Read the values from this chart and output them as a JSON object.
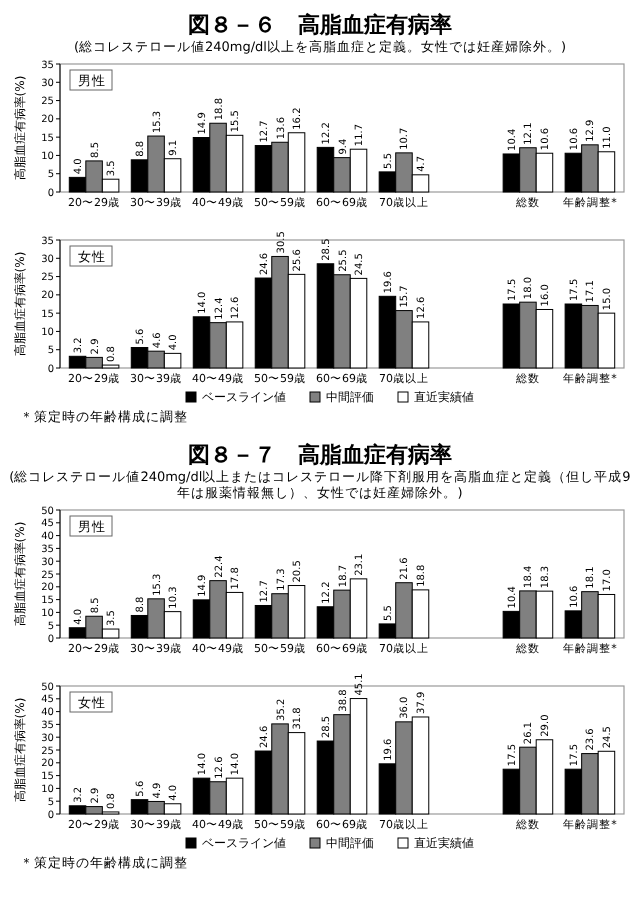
{
  "chart_data": [
    {
      "type": "bar",
      "title": "図８－６　高脂血症有病率",
      "subtitle": "(総コレステロール値240mg/dl以上を高脂血症と定義。女性では妊産婦除外。)",
      "ylabel": "高脂血症有病率(%)",
      "annotations": [
        "男性"
      ],
      "categories": [
        "20〜29歳",
        "30〜39歳",
        "40〜49歳",
        "50〜59歳",
        "60〜69歳",
        "70歳以上",
        null,
        "総数",
        "年齢調整*"
      ],
      "ylim": [
        0,
        35
      ],
      "yticks": [
        0,
        5,
        10,
        15,
        20,
        25,
        30,
        35
      ],
      "series": [
        {
          "color": "#000000",
          "values": [
            4.0,
            8.8,
            14.9,
            12.7,
            12.2,
            5.5,
            null,
            10.4,
            10.6
          ],
          "value_labels": [
            "4.0",
            "8.8",
            "14.9",
            "12.7",
            "12.2",
            "5.5",
            null,
            "10.4",
            "10.6"
          ]
        },
        {
          "color": "#808080",
          "values": [
            8.5,
            15.3,
            18.8,
            13.6,
            9.4,
            10.7,
            null,
            12.1,
            12.9
          ],
          "value_labels": [
            "8.5",
            "15.3",
            "18.8",
            "13.6",
            "9.4",
            "10.7",
            null,
            "12.1",
            "12.9"
          ]
        },
        {
          "color": "#ffffff",
          "values": [
            3.5,
            9.1,
            15.5,
            16.2,
            11.7,
            4.7,
            null,
            10.6,
            11.0
          ],
          "value_labels": [
            "3.5",
            "9.1",
            "15.5",
            "16.2",
            "11.7",
            "4.7",
            null,
            "10.6",
            "11.0"
          ]
        }
      ]
    },
    {
      "type": "bar",
      "ylabel": "高脂血症有病率(%)",
      "annotations": [
        "女性",
        "＊策定時の年齢構成に調整"
      ],
      "categories": [
        "20〜29歳",
        "30〜39歳",
        "40〜49歳",
        "50〜59歳",
        "60〜69歳",
        "70歳以上",
        null,
        "総数",
        "年齢調整*"
      ],
      "ylim": [
        0,
        35
      ],
      "yticks": [
        0,
        5,
        10,
        15,
        20,
        25,
        30,
        35
      ],
      "legend": "bottom",
      "series": [
        {
          "name": "ベースライン値",
          "color": "#000000",
          "values": [
            3.2,
            5.6,
            14.0,
            24.6,
            28.5,
            19.6,
            null,
            17.5,
            17.5
          ],
          "value_labels": [
            "3.2",
            "5.6",
            "14.0",
            "24.6",
            "28.5",
            "19.6",
            null,
            "17.5",
            "17.5"
          ]
        },
        {
          "name": "中間評価",
          "color": "#808080",
          "values": [
            2.9,
            4.6,
            12.4,
            30.5,
            25.5,
            15.7,
            null,
            18.0,
            17.1
          ],
          "value_labels": [
            "2.9",
            "4.6",
            "12.4",
            "30.5",
            "25.5",
            "15.7",
            null,
            "18.0",
            "17.1"
          ]
        },
        {
          "name": "直近実績値",
          "color": "#ffffff",
          "values": [
            0.8,
            4.0,
            12.6,
            25.6,
            24.5,
            12.6,
            null,
            16.0,
            15.0
          ],
          "value_labels": [
            "0.8",
            "4.0",
            "12.6",
            "25.6",
            "24.5",
            "12.6",
            null,
            "16.0",
            "15.0"
          ]
        }
      ]
    },
    {
      "type": "bar",
      "title": "図８－７　高脂血症有病率",
      "subtitle": "(総コレステロール値240mg/dl以上またはコレステロール降下剤服用を高脂血症と定義（但し平成9年は服薬情報無し）、女性では妊産婦除外。)",
      "ylabel": "高脂血症有病率(%)",
      "annotations": [
        "男性"
      ],
      "categories": [
        "20〜29歳",
        "30〜39歳",
        "40〜49歳",
        "50〜59歳",
        "60〜69歳",
        "70歳以上",
        null,
        "総数",
        "年齢調整*"
      ],
      "ylim": [
        0,
        50
      ],
      "yticks": [
        0,
        5,
        10,
        15,
        20,
        25,
        30,
        35,
        40,
        45,
        50
      ],
      "series": [
        {
          "color": "#000000",
          "values": [
            4.0,
            8.8,
            14.9,
            12.7,
            12.2,
            5.5,
            null,
            10.4,
            10.6
          ],
          "value_labels": [
            "4.0",
            "8.8",
            "14.9",
            "12.7",
            "12.2",
            "5.5",
            null,
            "10.4",
            "10.6"
          ]
        },
        {
          "color": "#808080",
          "values": [
            8.5,
            15.3,
            22.4,
            17.3,
            18.7,
            21.6,
            null,
            18.4,
            18.1
          ],
          "value_labels": [
            "8.5",
            "15.3",
            "22.4",
            "17.3",
            "18.7",
            "21.6",
            null,
            "18.4",
            "18.1"
          ]
        },
        {
          "color": "#ffffff",
          "values": [
            3.5,
            10.3,
            17.8,
            20.5,
            23.1,
            18.8,
            null,
            18.3,
            17.0
          ],
          "value_labels": [
            "3.5",
            "10.3",
            "17.8",
            "20.5",
            "23.1",
            "18.8",
            null,
            "18.3",
            "17.0"
          ]
        }
      ]
    },
    {
      "type": "bar",
      "ylabel": "高脂血症有病率(%)",
      "annotations": [
        "女性",
        "＊策定時の年齢構成に調整"
      ],
      "categories": [
        "20〜29歳",
        "30〜39歳",
        "40〜49歳",
        "50〜59歳",
        "60〜69歳",
        "70歳以上",
        null,
        "総数",
        "年齢調整*"
      ],
      "ylim": [
        0,
        50
      ],
      "yticks": [
        0,
        5,
        10,
        15,
        20,
        25,
        30,
        35,
        40,
        45,
        50
      ],
      "legend": "bottom",
      "series": [
        {
          "name": "ベースライン値",
          "color": "#000000",
          "values": [
            3.2,
            5.6,
            14.0,
            24.6,
            28.5,
            19.6,
            null,
            17.5,
            17.5
          ],
          "value_labels": [
            "3.2",
            "5.6",
            "14.0",
            "24.6",
            "28.5",
            "19.6",
            null,
            "17.5",
            "17.5"
          ]
        },
        {
          "name": "中間評価",
          "color": "#808080",
          "values": [
            2.9,
            4.9,
            12.6,
            35.2,
            38.8,
            36.0,
            null,
            26.1,
            23.6
          ],
          "value_labels": [
            "2.9",
            "4.9",
            "12.6",
            "35.2",
            "38.8",
            "36.0",
            null,
            "26.1",
            "23.6"
          ]
        },
        {
          "name": "直近実績値",
          "color": "#ffffff",
          "values": [
            0.8,
            4.0,
            14.0,
            31.8,
            45.1,
            37.9,
            null,
            29.0,
            24.5
          ],
          "value_labels": [
            "0.8",
            "4.0",
            "14.0",
            "31.8",
            "45.1",
            "37.9",
            null,
            "29.0",
            "24.5"
          ]
        }
      ]
    }
  ]
}
